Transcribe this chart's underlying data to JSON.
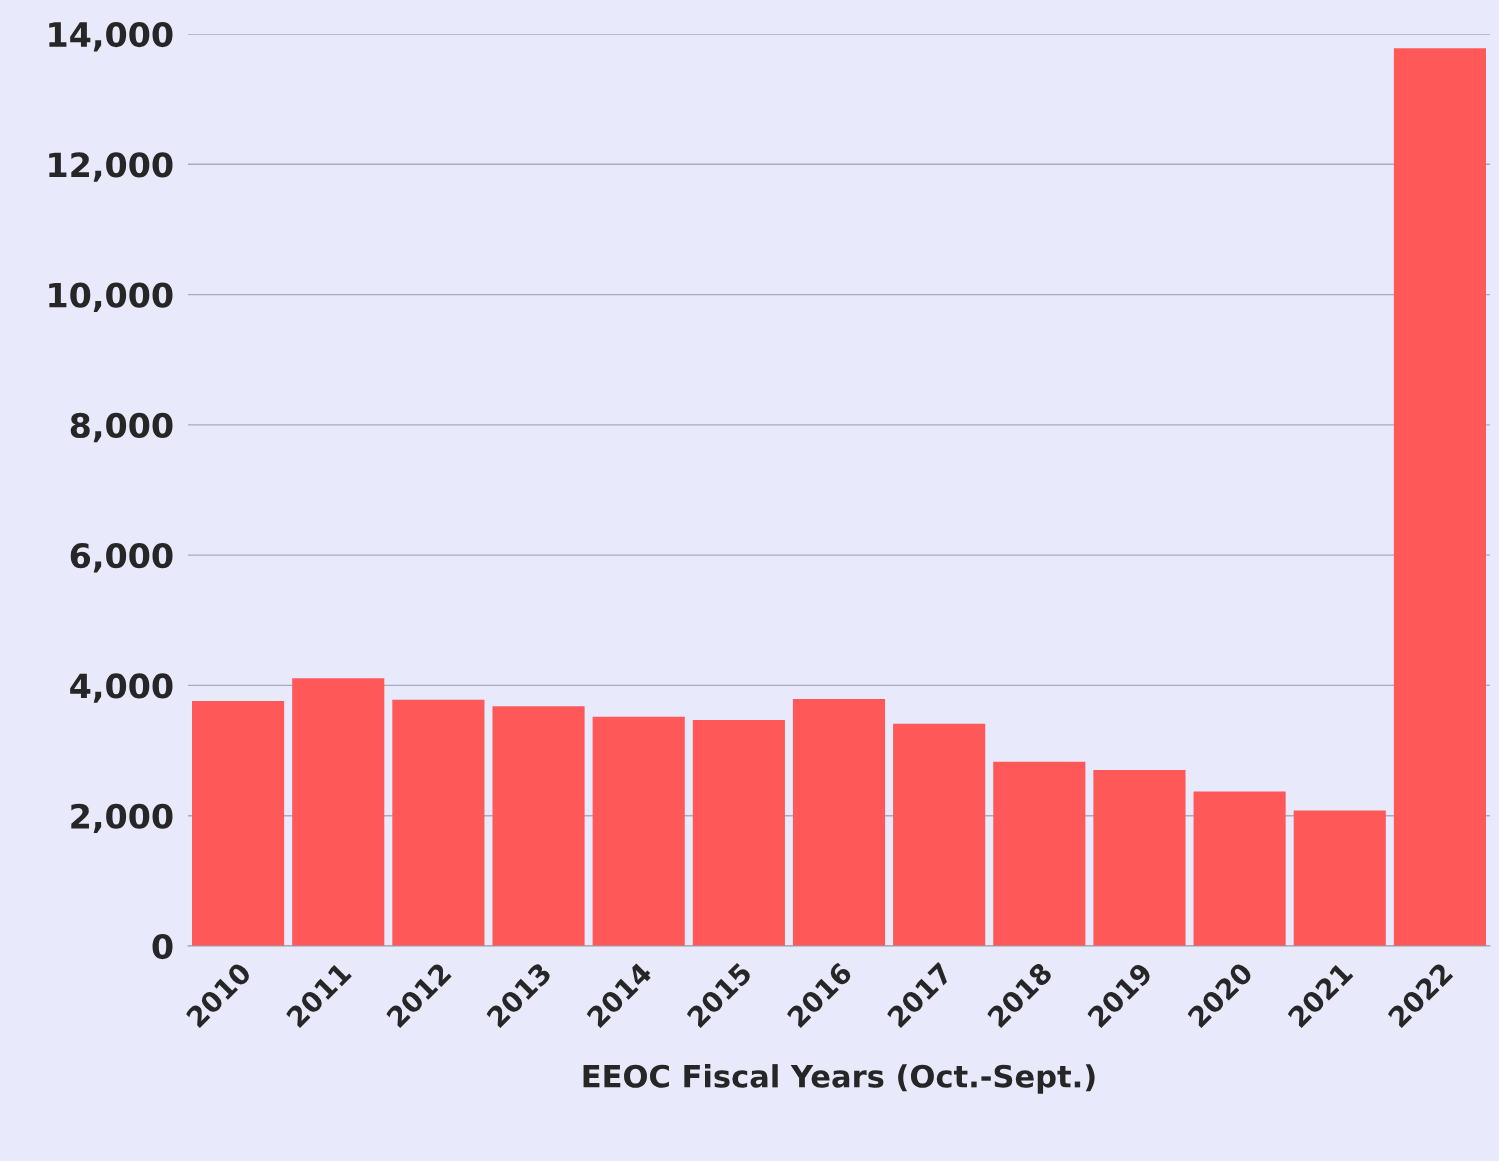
{
  "chart_data": {
    "type": "bar",
    "xlabel": "EEOC Fiscal Years (Oct.-Sept.)",
    "categories": [
      "2010",
      "2011",
      "2012",
      "2013",
      "2014",
      "2015",
      "2016",
      "2017",
      "2018",
      "2019",
      "2020",
      "2021",
      "2022"
    ],
    "values": [
      3760,
      4110,
      3780,
      3680,
      3520,
      3470,
      3790,
      3410,
      2830,
      2700,
      2370,
      2080,
      13780
    ],
    "color": "#ff5858",
    "ylim": [
      0,
      14000
    ],
    "yticks": [
      {
        "value": 0,
        "label": "0"
      },
      {
        "value": 2000,
        "label": "2,000"
      },
      {
        "value": 4000,
        "label": "4,000"
      },
      {
        "value": 6000,
        "label": "6,000"
      },
      {
        "value": 8000,
        "label": "8,000"
      },
      {
        "value": 10000,
        "label": "10,000"
      },
      {
        "value": 12000,
        "label": "12,000"
      },
      {
        "value": 14000,
        "label": "14,000"
      }
    ],
    "grid": "y"
  }
}
